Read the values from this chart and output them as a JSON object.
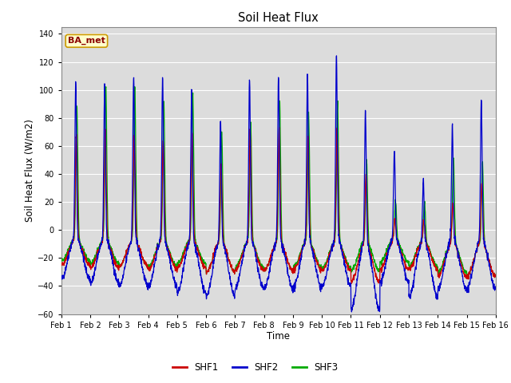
{
  "title": "Soil Heat Flux",
  "ylabel": "Soil Heat Flux (W/m2)",
  "xlabel": "Time",
  "ylim": [
    -60,
    145
  ],
  "yticks": [
    -60,
    -40,
    -20,
    0,
    20,
    40,
    60,
    80,
    100,
    120,
    140
  ],
  "colors": {
    "SHF1": "#cc0000",
    "SHF2": "#0000cc",
    "SHF3": "#00aa00"
  },
  "legend_label": "BA_met",
  "bg_color": "#dcdcdc",
  "x_tick_labels": [
    "Feb 1",
    "Feb 2",
    "Feb 3",
    "Feb 4",
    "Feb 5",
    "Feb 6",
    "Feb 7",
    "Feb 8",
    "Feb 9",
    "Feb 10",
    "Feb 11",
    "Feb 12",
    "Feb 13",
    "Feb 14",
    "Feb 15",
    "Feb 16"
  ],
  "n_days": 15,
  "pts_per_day": 144
}
